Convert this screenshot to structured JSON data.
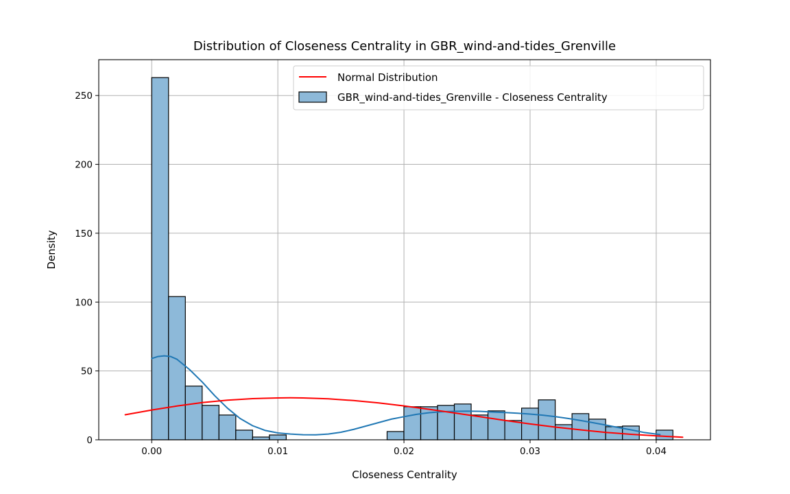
{
  "chart_data": {
    "type": "bar",
    "title": "Distribution of Closeness Centrality in GBR_wind-and-tides_Grenville",
    "xlabel": "Closeness Centrality",
    "ylabel": "Density",
    "xlim": [
      -0.0042,
      0.0443
    ],
    "ylim": [
      0,
      276
    ],
    "xticks": [
      0.0,
      0.01,
      0.02,
      0.03,
      0.04
    ],
    "xtick_labels": [
      "0.00",
      "0.01",
      "0.02",
      "0.03",
      "0.04"
    ],
    "yticks": [
      0,
      50,
      100,
      150,
      200,
      250
    ],
    "ytick_labels": [
      "0",
      "50",
      "100",
      "150",
      "200",
      "250"
    ],
    "grid": true,
    "legend_position": "top-right",
    "histogram": {
      "name": "GBR_wind-and-tides_Grenville - Closeness Centrality",
      "color": "#8db9d9",
      "edge_color": "#000000",
      "bin_start": 0.0,
      "bin_width": 0.001333,
      "values": [
        263,
        104,
        39,
        25,
        18,
        7,
        2,
        3.5,
        0,
        0,
        0,
        0,
        0,
        0,
        6,
        24,
        24,
        25,
        26,
        18,
        21,
        14,
        23,
        29,
        11,
        19,
        15,
        9.5,
        10,
        0,
        7
      ]
    },
    "kde": {
      "color": "#1f77b4",
      "x": [
        0.0,
        0.0005,
        0.001,
        0.0015,
        0.002,
        0.003,
        0.004,
        0.005,
        0.006,
        0.007,
        0.008,
        0.009,
        0.01,
        0.011,
        0.012,
        0.013,
        0.014,
        0.015,
        0.016,
        0.017,
        0.018,
        0.019,
        0.02,
        0.021,
        0.022,
        0.023,
        0.024,
        0.025,
        0.026,
        0.027,
        0.028,
        0.029,
        0.03,
        0.031,
        0.032,
        0.033,
        0.034,
        0.035,
        0.036,
        0.037,
        0.038,
        0.039,
        0.0403
      ],
      "y": [
        59,
        60.5,
        61,
        60.5,
        58.5,
        51,
        42,
        32,
        23,
        15.5,
        10.2,
        6.8,
        5.0,
        4.2,
        3.7,
        3.6,
        4.2,
        5.5,
        7.5,
        10,
        12.5,
        15,
        16.8,
        18.5,
        19.7,
        20.4,
        20.7,
        20.8,
        20.7,
        20.2,
        19.8,
        19.3,
        18.7,
        17.9,
        16.8,
        15.5,
        14,
        12.4,
        10.7,
        8.9,
        7.2,
        5.4,
        3.8
      ]
    },
    "normal": {
      "name": "Normal Distribution",
      "color": "#ff0000",
      "x": [
        -0.0021,
        0.0,
        0.002,
        0.004,
        0.006,
        0.008,
        0.01,
        0.011,
        0.012,
        0.014,
        0.016,
        0.018,
        0.02,
        0.022,
        0.024,
        0.026,
        0.028,
        0.03,
        0.032,
        0.034,
        0.036,
        0.038,
        0.04,
        0.0421
      ],
      "y": [
        18.2,
        21.6,
        24.5,
        27.0,
        28.8,
        29.9,
        30.4,
        30.5,
        30.4,
        29.8,
        28.5,
        26.8,
        24.6,
        22.1,
        19.5,
        16.8,
        14.1,
        11.5,
        9.2,
        7.2,
        5.4,
        4.0,
        2.9,
        1.9
      ]
    }
  }
}
